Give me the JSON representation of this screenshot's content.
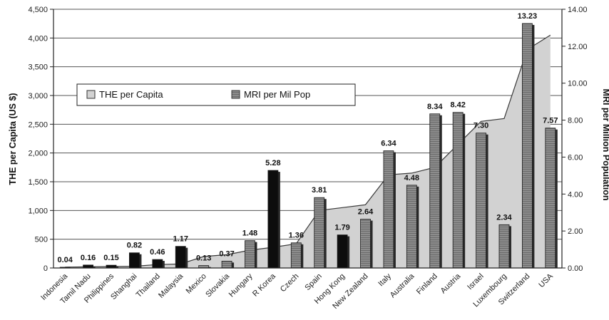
{
  "chart_data": {
    "type": "bar",
    "categories": [
      "Indonesia",
      "Tamil Nadu",
      "Philippines",
      "Shanghai",
      "Thailand",
      "Malaysia",
      "Mexico",
      "Slovakia",
      "Hungary",
      "R Korea",
      "Czech",
      "Spain",
      "Hong Kong",
      "New Zealand",
      "Italy",
      "Australia",
      "Finland",
      "Austria",
      "Israel",
      "Luxembourg",
      "Switzerland",
      "USA"
    ],
    "series": [
      {
        "name": "THE per Capita",
        "type": "area",
        "axis": "left",
        "values": [
          15,
          20,
          25,
          30,
          60,
          70,
          200,
          230,
          310,
          360,
          420,
          1000,
          1050,
          1100,
          1620,
          1650,
          1750,
          2150,
          2550,
          2600,
          3800,
          4050
        ]
      },
      {
        "name": "MRI per Mil Pop",
        "type": "bar",
        "axis": "right",
        "values": [
          0.04,
          0.16,
          0.15,
          0.82,
          0.46,
          1.17,
          0.13,
          0.37,
          1.48,
          5.28,
          1.36,
          3.81,
          1.79,
          2.64,
          6.34,
          4.48,
          8.34,
          8.42,
          7.3,
          2.34,
          13.23,
          7.57
        ],
        "labels": [
          "0.04",
          "0.16",
          "0.15",
          "0.82",
          "0.46",
          "1.17",
          "0.13",
          "0.37",
          "1.48",
          "5.28",
          "1.36",
          "3.81",
          "1.79",
          "2.64",
          "6.34",
          "4.48",
          "8.34",
          "8.42",
          "7.30",
          "2.34",
          "13.23",
          "7.57"
        ],
        "dark_bar_categories": [
          "Indonesia",
          "Tamil Nadu",
          "Philippines",
          "Shanghai",
          "Thailand",
          "Malaysia",
          "R Korea",
          "Hong Kong"
        ]
      }
    ],
    "y_left": {
      "label": "THE per Capita (US $)",
      "ylim": [
        0,
        4500
      ],
      "ticks": [
        "0",
        "500",
        "1,000",
        "1,500",
        "2,000",
        "2,500",
        "3,000",
        "3,500",
        "4,000",
        "4,500"
      ]
    },
    "y_right": {
      "label": "MRI per Million Population",
      "ylim": [
        0,
        14
      ],
      "ticks": [
        "0.00",
        "2.00",
        "4.00",
        "6.00",
        "8.00",
        "10.00",
        "12.00",
        "14.00"
      ]
    },
    "grid": true,
    "legend_position": "upper-left",
    "colors": {
      "area_fill": "#d2d2d2",
      "area_line": "#3a3a3a",
      "bar_gray": "#8c8c8c",
      "bar_dark": "#0d0d0d",
      "grid": "#555555"
    }
  }
}
